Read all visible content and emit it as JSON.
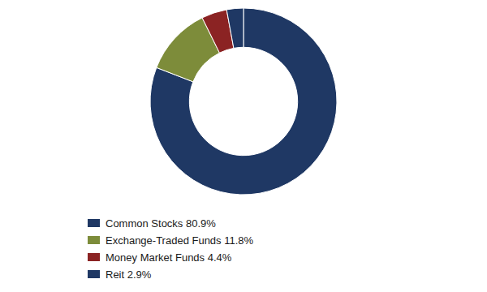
{
  "chart_data": {
    "type": "donut",
    "categories": [
      "Common Stocks 80.9%",
      "Exchange-Traded Funds 11.8%",
      "Money Market Funds 4.4%",
      "Reit 2.9%"
    ],
    "values": [
      80.9,
      11.8,
      4.4,
      2.9
    ],
    "colors": [
      "#1f3864",
      "#7d8c3a",
      "#8b2323",
      "#1f3864"
    ],
    "legend": "bottom"
  }
}
